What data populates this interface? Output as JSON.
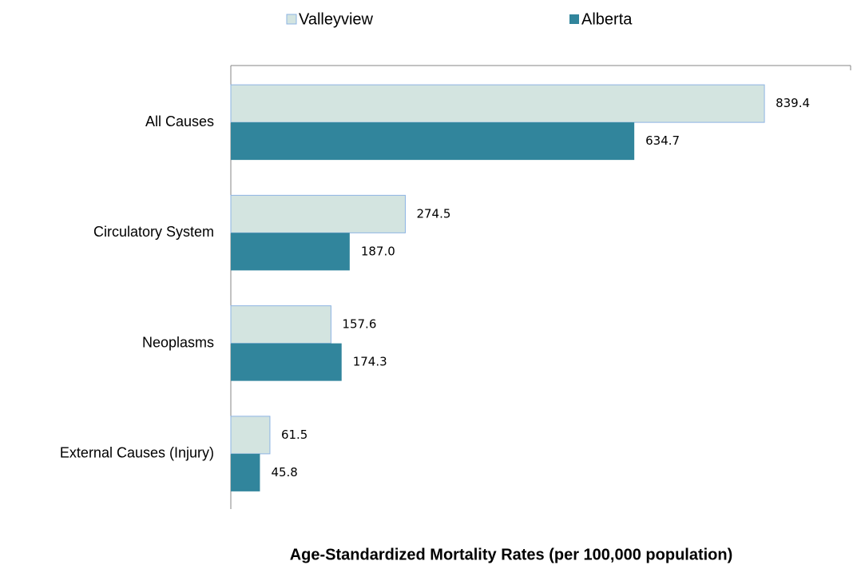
{
  "chart_data": {
    "type": "hbar",
    "title": "Age-Standardized Mortality Rates (per 100,000 population)",
    "categories": [
      "All Causes",
      "Circulatory System",
      "Neoplasms",
      "External Causes (Injury)"
    ],
    "series": [
      {
        "name": "Valleyview",
        "color": "#d3e4e0",
        "values": [
          839.4,
          274.5,
          157.6,
          61.5
        ],
        "value_labels": [
          "839.4",
          "274.5",
          "157.6",
          "61.5"
        ]
      },
      {
        "name": "Alberta",
        "color": "#31859c",
        "values": [
          634.7,
          187.0,
          174.3,
          45.8
        ],
        "value_labels": [
          "634.7",
          "187.0",
          "174.3",
          "45.8"
        ]
      }
    ],
    "xlim": [
      0,
      975
    ]
  }
}
